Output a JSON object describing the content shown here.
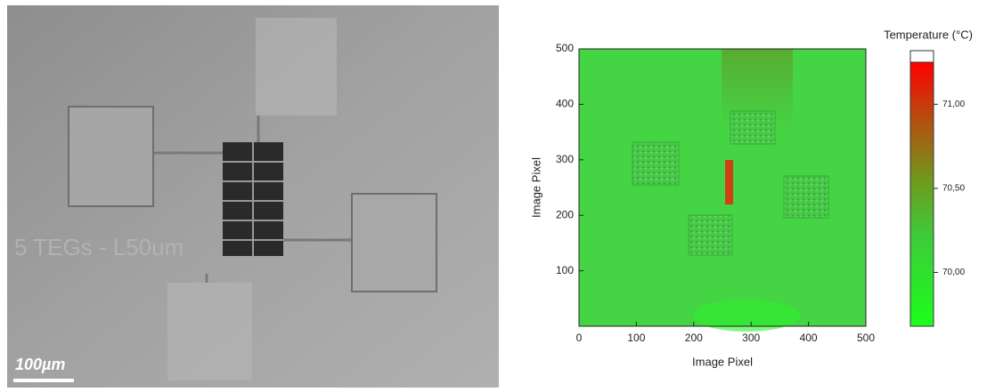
{
  "image": {
    "overlay_text": "5 TEGs - L50um",
    "scale_bar": "100µm"
  },
  "chart_data": {
    "type": "heatmap",
    "xlabel": "Image Pixel",
    "ylabel": "Image Pixel",
    "xlim": [
      0,
      500
    ],
    "ylim": [
      0,
      500
    ],
    "xticks": [
      0,
      100,
      200,
      300,
      400,
      500
    ],
    "yticks": [
      100,
      200,
      300,
      400,
      500
    ],
    "colorbar": {
      "title": "Temperature (°C)",
      "lim": [
        69.68,
        71.25
      ],
      "ticks": [
        {
          "value": 70,
          "label": "70,00"
        },
        {
          "value": 70.5,
          "label": "70,50"
        },
        {
          "value": 71,
          "label": "71,00"
        }
      ]
    }
  }
}
